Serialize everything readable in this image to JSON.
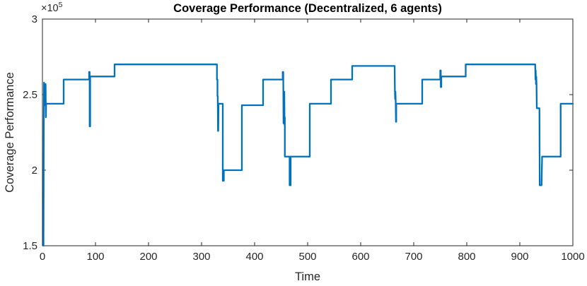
{
  "chart_data": {
    "type": "line",
    "title": "Coverage Performance (Decentralized, 6 agents)",
    "xlabel": "Time",
    "ylabel": "Coverage Performance",
    "y_exponent_base": "×10",
    "y_exponent": "5",
    "xlim": [
      0,
      1000
    ],
    "ylim": [
      1.5,
      3.0
    ],
    "x_ticks": [
      0,
      100,
      200,
      300,
      400,
      500,
      600,
      700,
      800,
      900,
      1000
    ],
    "x_tick_labels": [
      "0",
      "100",
      "200",
      "300",
      "400",
      "500",
      "600",
      "700",
      "800",
      "900",
      "1000"
    ],
    "y_ticks": [
      1.5,
      2.0,
      2.5,
      3.0
    ],
    "y_tick_labels": [
      "1.5",
      "2",
      "2.5",
      "3"
    ],
    "grid": false,
    "legend": null,
    "line_color": "#0072BD",
    "axis_color": "#262626",
    "line_width": 2.3,
    "y_values_unit": "1e5",
    "series": [
      {
        "name": "coverage-performance",
        "points": [
          [
            2,
            1.5
          ],
          [
            2.5,
            2.3
          ],
          [
            3,
            2.58
          ],
          [
            3.5,
            2.44
          ],
          [
            4,
            2.57
          ],
          [
            4.5,
            2.43
          ],
          [
            5,
            2.56
          ],
          [
            5.5,
            2.43
          ],
          [
            6,
            2.57
          ],
          [
            6.5,
            2.35
          ],
          [
            7,
            2.44
          ],
          [
            40,
            2.44
          ],
          [
            40,
            2.6
          ],
          [
            88,
            2.6
          ],
          [
            88,
            2.65
          ],
          [
            89,
            2.65
          ],
          [
            89,
            2.29
          ],
          [
            90,
            2.29
          ],
          [
            90,
            2.62
          ],
          [
            136,
            2.62
          ],
          [
            136,
            2.7
          ],
          [
            329,
            2.7
          ],
          [
            329,
            2.6
          ],
          [
            330,
            2.6
          ],
          [
            330,
            2.49
          ],
          [
            330.5,
            2.49
          ],
          [
            331,
            2.26
          ],
          [
            331.5,
            2.26
          ],
          [
            332,
            2.44
          ],
          [
            340,
            2.44
          ],
          [
            340,
            1.93
          ],
          [
            342,
            1.93
          ],
          [
            342,
            2.0
          ],
          [
            376,
            2.0
          ],
          [
            376,
            2.43
          ],
          [
            416,
            2.43
          ],
          [
            416,
            2.6
          ],
          [
            453,
            2.6
          ],
          [
            453,
            2.65
          ],
          [
            454,
            2.65
          ],
          [
            454.5,
            2.31
          ],
          [
            455,
            2.31
          ],
          [
            455.5,
            2.52
          ],
          [
            456,
            2.52
          ],
          [
            456.5,
            2.3
          ],
          [
            457,
            2.35
          ],
          [
            457,
            2.09
          ],
          [
            466,
            2.09
          ],
          [
            466,
            1.9
          ],
          [
            468,
            1.9
          ],
          [
            468,
            2.09
          ],
          [
            504,
            2.09
          ],
          [
            504,
            2.44
          ],
          [
            544,
            2.44
          ],
          [
            544,
            2.6
          ],
          [
            584,
            2.6
          ],
          [
            584,
            2.69
          ],
          [
            664,
            2.69
          ],
          [
            664.5,
            2.52
          ],
          [
            665,
            2.47
          ],
          [
            665.5,
            2.52
          ],
          [
            666,
            2.46
          ],
          [
            666.5,
            2.32
          ],
          [
            667,
            2.32
          ],
          [
            667,
            2.44
          ],
          [
            716,
            2.44
          ],
          [
            716,
            2.6
          ],
          [
            750,
            2.6
          ],
          [
            750,
            2.66
          ],
          [
            751,
            2.66
          ],
          [
            751,
            2.55
          ],
          [
            752,
            2.55
          ],
          [
            752,
            2.62
          ],
          [
            798,
            2.62
          ],
          [
            798,
            2.7
          ],
          [
            929,
            2.7
          ],
          [
            929.5,
            2.6
          ],
          [
            930,
            2.66
          ],
          [
            930.5,
            2.57
          ],
          [
            931,
            2.62
          ],
          [
            931.5,
            2.57
          ],
          [
            932,
            2.41
          ],
          [
            937,
            2.41
          ],
          [
            937.5,
            1.9
          ],
          [
            941,
            1.9
          ],
          [
            942,
            2.09
          ],
          [
            977,
            2.09
          ],
          [
            977,
            2.44
          ],
          [
            1000,
            2.44
          ]
        ]
      }
    ]
  }
}
